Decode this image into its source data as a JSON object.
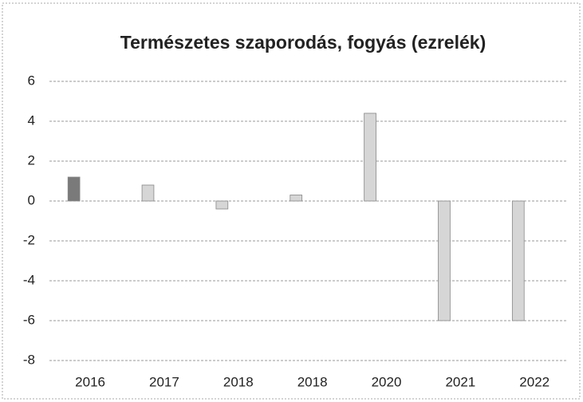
{
  "chart_data": {
    "type": "bar",
    "title": "Természetes szaporodás, fogyás (ezrelék)",
    "categories": [
      "2016",
      "2017",
      "2018",
      "2018",
      "2020",
      "2021",
      "2022"
    ],
    "values": [
      1.2,
      0.8,
      -0.4,
      0.3,
      4.4,
      -6,
      -6
    ],
    "colors": [
      "#7a7a7a",
      "#d6d6d6",
      "#d6d6d6",
      "#d6d6d6",
      "#d6d6d6",
      "#d6d6d6",
      "#d6d6d6"
    ],
    "ylim": [
      -8,
      6
    ],
    "yticks": [
      -8,
      -6,
      -4,
      -2,
      0,
      2,
      4,
      6
    ],
    "grid": true
  }
}
